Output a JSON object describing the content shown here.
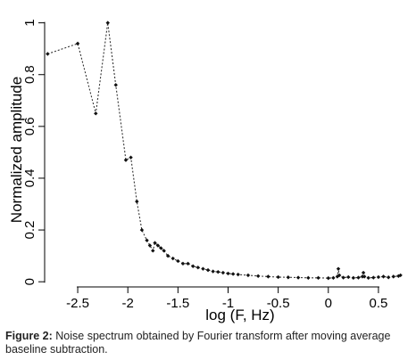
{
  "chart_data": {
    "type": "scatter",
    "title": "",
    "xlabel": "log (F, Hz)",
    "ylabel": "Normalized amplitude",
    "xlim": [
      -2.83,
      0.75
    ],
    "ylim": [
      -0.02,
      1.04
    ],
    "xticks": [
      -2.5,
      -2,
      -1.5,
      -1,
      -0.5,
      0,
      0.5
    ],
    "xtick_labels": [
      "-2.5",
      "-2",
      "-1.5",
      "-1",
      "-0.5",
      "0",
      "0.5"
    ],
    "yticks": [
      0,
      0.2,
      0.4,
      0.6,
      0.8,
      1
    ],
    "ytick_labels": [
      "0",
      "0.2",
      "0.4",
      "0.6",
      "0.8",
      "1"
    ],
    "grid": false,
    "legend": "none",
    "series": [
      {
        "connector": "dotted",
        "marker": "diamond",
        "x": [
          -2.8,
          -2.5,
          -2.32,
          -2.2,
          -2.12,
          -2.02,
          -1.97,
          -1.91,
          -1.86,
          -1.81,
          -1.78,
          -1.75,
          -1.73,
          -1.7,
          -1.67,
          -1.64,
          -1.6,
          -1.55,
          -1.5,
          -1.45,
          -1.4,
          -1.35,
          -1.3,
          -1.25,
          -1.2,
          -1.15,
          -1.1,
          -1.05,
          -1.0,
          -0.95,
          -0.9,
          -0.8,
          -0.7,
          -0.6,
          -0.5,
          -0.4,
          -0.3,
          -0.2,
          -0.1,
          0.0,
          0.05,
          0.09,
          0.1,
          0.11,
          0.15,
          0.2,
          0.25,
          0.3,
          0.34,
          0.35,
          0.36,
          0.4,
          0.45,
          0.5,
          0.55,
          0.6,
          0.65,
          0.7,
          0.72
        ],
        "y": [
          0.88,
          0.92,
          0.65,
          1.0,
          0.76,
          0.47,
          0.48,
          0.31,
          0.2,
          0.16,
          0.14,
          0.12,
          0.15,
          0.14,
          0.13,
          0.12,
          0.1,
          0.09,
          0.08,
          0.07,
          0.07,
          0.06,
          0.055,
          0.05,
          0.045,
          0.04,
          0.038,
          0.035,
          0.032,
          0.03,
          0.028,
          0.025,
          0.022,
          0.02,
          0.018,
          0.017,
          0.016,
          0.015,
          0.015,
          0.014,
          0.015,
          0.02,
          0.05,
          0.025,
          0.016,
          0.018,
          0.015,
          0.016,
          0.02,
          0.035,
          0.02,
          0.015,
          0.016,
          0.018,
          0.02,
          0.017,
          0.02,
          0.022,
          0.025
        ]
      }
    ]
  },
  "caption": {
    "lead": "Figure 2:",
    "text": "Noise spectrum obtained by Fourier transform after moving average baseline subtraction."
  }
}
